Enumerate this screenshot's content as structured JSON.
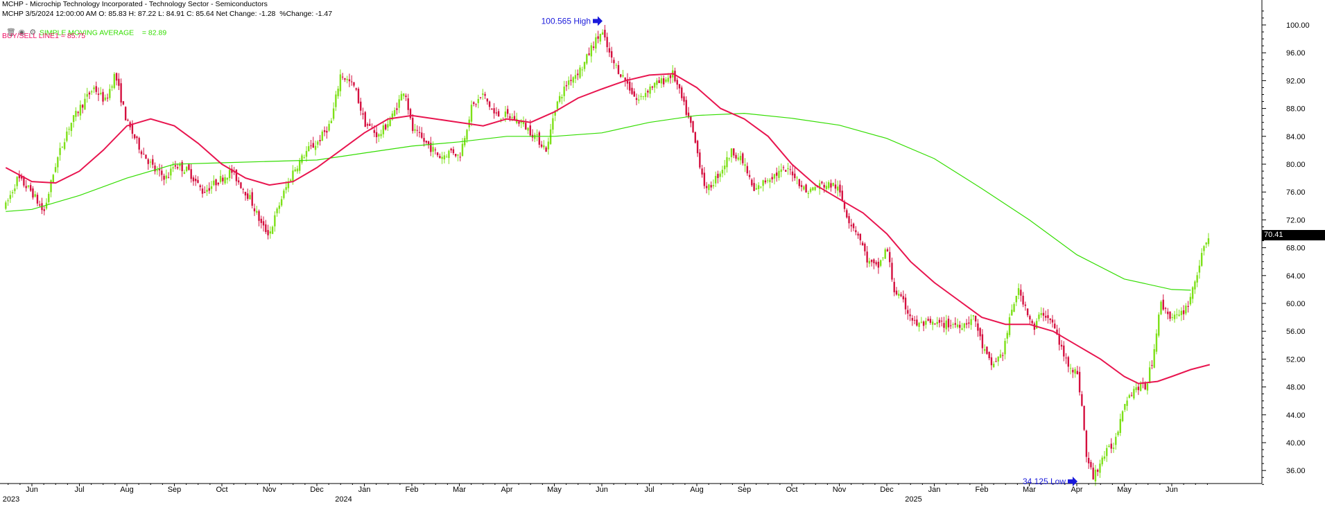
{
  "header": {
    "line1": "MCHP - Microchip Technology Incorporated - Technology Sector - Semiconductors",
    "line2": "MCHP 3/5/2024 12:00:00 AM O: 85.83 H: 87.22 L: 84.91 C: 85.64 Net Change: -1.28  %Change: -1.47",
    "sma_label": "SIMPLE MOVING AVERAGE",
    "sma_value": "= 82.89",
    "bsl_label": "BUY/SELL LINE1 = 85.75"
  },
  "icons": [
    "trash-icon",
    "eye-hidden-icon",
    "gear-icon"
  ],
  "last_price": "70.41",
  "colors": {
    "up": "#7de018",
    "down": "#d4103f",
    "sma": "#33dd00",
    "bsl": "#e8154f",
    "annotation": "#1a1adb",
    "axis": "#000000"
  },
  "chart_data": {
    "type": "candlestick",
    "ylim": [
      33,
      103
    ],
    "y_ticks": [
      "100.00",
      "96.00",
      "92.00",
      "88.00",
      "84.00",
      "80.00",
      "76.00",
      "72.00",
      "68.00",
      "64.00",
      "60.00",
      "56.00",
      "52.00",
      "48.00",
      "44.00",
      "40.00",
      "36.00"
    ],
    "x_months": [
      {
        "label": "Jun",
        "year": "2023"
      },
      {
        "label": "Jul"
      },
      {
        "label": "Aug"
      },
      {
        "label": "Sep"
      },
      {
        "label": "Oct"
      },
      {
        "label": "Nov"
      },
      {
        "label": "Dec"
      },
      {
        "label": "Jan",
        "year": "2024"
      },
      {
        "label": "Feb"
      },
      {
        "label": "Mar"
      },
      {
        "label": "Apr"
      },
      {
        "label": "May"
      },
      {
        "label": "Jun"
      },
      {
        "label": "Jul"
      },
      {
        "label": "Aug"
      },
      {
        "label": "Sep"
      },
      {
        "label": "Oct"
      },
      {
        "label": "Nov"
      },
      {
        "label": "Dec"
      },
      {
        "label": "Jan",
        "year": "2025"
      },
      {
        "label": "Feb"
      },
      {
        "label": "Mar"
      },
      {
        "label": "Apr"
      },
      {
        "label": "May"
      },
      {
        "label": "Jun"
      }
    ],
    "annotations": [
      {
        "text": "100.565 High",
        "value": 100.565,
        "month_index": 12
      },
      {
        "text": "34.125 Low",
        "value": 34.125,
        "month_index": 22
      }
    ],
    "price_path": [
      [
        -0.55,
        74
      ],
      [
        -0.3,
        78
      ],
      [
        0,
        76
      ],
      [
        0.25,
        73
      ],
      [
        0.5,
        80
      ],
      [
        0.75,
        85
      ],
      [
        1,
        88
      ],
      [
        1.3,
        91
      ],
      [
        1.55,
        89
      ],
      [
        1.75,
        93
      ],
      [
        2,
        86
      ],
      [
        2.3,
        82
      ],
      [
        2.6,
        79
      ],
      [
        2.85,
        78
      ],
      [
        3,
        80
      ],
      [
        3.3,
        79
      ],
      [
        3.6,
        76
      ],
      [
        4,
        78
      ],
      [
        4.2,
        79
      ],
      [
        4.6,
        75
      ],
      [
        4.85,
        71
      ],
      [
        5,
        70
      ],
      [
        5.25,
        75
      ],
      [
        5.5,
        79
      ],
      [
        5.8,
        82
      ],
      [
        6,
        83
      ],
      [
        6.3,
        86
      ],
      [
        6.5,
        93
      ],
      [
        6.8,
        91
      ],
      [
        7,
        86
      ],
      [
        7.3,
        84
      ],
      [
        7.6,
        87
      ],
      [
        7.85,
        91
      ],
      [
        8,
        85
      ],
      [
        8.3,
        83
      ],
      [
        8.6,
        81
      ],
      [
        8.85,
        82
      ],
      [
        9,
        81
      ],
      [
        9.25,
        88
      ],
      [
        9.5,
        90
      ],
      [
        9.75,
        87
      ],
      [
        10,
        87
      ],
      [
        10.3,
        86
      ],
      [
        10.6,
        84
      ],
      [
        10.85,
        82
      ],
      [
        11,
        88
      ],
      [
        11.3,
        92
      ],
      [
        11.6,
        94
      ],
      [
        11.8,
        97
      ],
      [
        12,
        99
      ],
      [
        12.2,
        95
      ],
      [
        12.5,
        92
      ],
      [
        12.75,
        89
      ],
      [
        13,
        91
      ],
      [
        13.3,
        92
      ],
      [
        13.5,
        93
      ],
      [
        13.75,
        88
      ],
      [
        13.9,
        85
      ],
      [
        14,
        82
      ],
      [
        14.2,
        76
      ],
      [
        14.5,
        79
      ],
      [
        14.75,
        82
      ],
      [
        15,
        80
      ],
      [
        15.2,
        76
      ],
      [
        15.5,
        78
      ],
      [
        15.8,
        79
      ],
      [
        16,
        79
      ],
      [
        16.3,
        76
      ],
      [
        16.6,
        77
      ],
      [
        16.9,
        77
      ],
      [
        17,
        76
      ],
      [
        17.2,
        72
      ],
      [
        17.4,
        70
      ],
      [
        17.6,
        66
      ],
      [
        17.8,
        65
      ],
      [
        18,
        68
      ],
      [
        18.15,
        62
      ],
      [
        18.35,
        60
      ],
      [
        18.6,
        57
      ],
      [
        19,
        57
      ],
      [
        19.3,
        57
      ],
      [
        19.6,
        57
      ],
      [
        19.85,
        58
      ],
      [
        20,
        54
      ],
      [
        20.2,
        51
      ],
      [
        20.45,
        53
      ],
      [
        20.6,
        58
      ],
      [
        20.75,
        62
      ],
      [
        20.9,
        60
      ],
      [
        21.1,
        56
      ],
      [
        21.25,
        59
      ],
      [
        21.5,
        57
      ],
      [
        21.75,
        52
      ],
      [
        22,
        50
      ],
      [
        22.1,
        46
      ],
      [
        22.2,
        38
      ],
      [
        22.35,
        35
      ],
      [
        22.55,
        38
      ],
      [
        22.8,
        40
      ],
      [
        23,
        46
      ],
      [
        23.25,
        48
      ],
      [
        23.45,
        48
      ],
      [
        23.6,
        52
      ],
      [
        23.75,
        60
      ],
      [
        24,
        58
      ],
      [
        24.15,
        58
      ],
      [
        24.35,
        60
      ],
      [
        24.6,
        66
      ],
      [
        24.8,
        70.4
      ]
    ],
    "sma_series": [
      [
        -0.55,
        73.2
      ],
      [
        0,
        73.5
      ],
      [
        1,
        75.5
      ],
      [
        2,
        78
      ],
      [
        3,
        80
      ],
      [
        4,
        80.2
      ],
      [
        5,
        80.4
      ],
      [
        6,
        80.6
      ],
      [
        7,
        81.6
      ],
      [
        8,
        82.6
      ],
      [
        9,
        83.2
      ],
      [
        10,
        84
      ],
      [
        11,
        84
      ],
      [
        12,
        84.5
      ],
      [
        13,
        86
      ],
      [
        14,
        87
      ],
      [
        15,
        87.3
      ],
      [
        16,
        86.6
      ],
      [
        17,
        85.6
      ],
      [
        18,
        83.7
      ],
      [
        19,
        80.8
      ],
      [
        20,
        76.5
      ],
      [
        21,
        72
      ],
      [
        22,
        67
      ],
      [
        23,
        63.5
      ],
      [
        24,
        62
      ],
      [
        24.4,
        61.9
      ]
    ],
    "bsl_series": [
      [
        -0.55,
        79.5
      ],
      [
        0,
        77.5
      ],
      [
        0.5,
        77.3
      ],
      [
        1,
        79
      ],
      [
        1.5,
        82
      ],
      [
        2,
        85.5
      ],
      [
        2.5,
        86.5
      ],
      [
        3,
        85.5
      ],
      [
        3.5,
        83
      ],
      [
        4,
        80
      ],
      [
        4.5,
        78
      ],
      [
        5,
        77
      ],
      [
        5.5,
        77.5
      ],
      [
        6,
        79.5
      ],
      [
        6.5,
        82
      ],
      [
        7,
        84.5
      ],
      [
        7.5,
        86.5
      ],
      [
        8,
        87
      ],
      [
        8.5,
        86.5
      ],
      [
        9,
        86
      ],
      [
        9.5,
        85.5
      ],
      [
        10,
        86.5
      ],
      [
        10.5,
        86
      ],
      [
        11,
        87.5
      ],
      [
        11.5,
        89.5
      ],
      [
        12,
        90.8
      ],
      [
        12.5,
        92
      ],
      [
        13,
        92.8
      ],
      [
        13.5,
        93
      ],
      [
        14,
        91
      ],
      [
        14.5,
        88
      ],
      [
        15,
        86.5
      ],
      [
        15.5,
        84
      ],
      [
        16,
        80
      ],
      [
        16.5,
        77
      ],
      [
        17,
        75
      ],
      [
        17.5,
        73
      ],
      [
        18,
        70
      ],
      [
        18.5,
        66
      ],
      [
        19,
        63
      ],
      [
        19.5,
        60.5
      ],
      [
        20,
        58
      ],
      [
        20.5,
        57
      ],
      [
        21,
        57
      ],
      [
        21.5,
        56
      ],
      [
        22,
        54
      ],
      [
        22.5,
        52
      ],
      [
        23,
        49.5
      ],
      [
        23.3,
        48.5
      ],
      [
        23.7,
        48.8
      ],
      [
        24,
        49.5
      ],
      [
        24.4,
        50.5
      ],
      [
        24.8,
        51.2
      ]
    ]
  }
}
